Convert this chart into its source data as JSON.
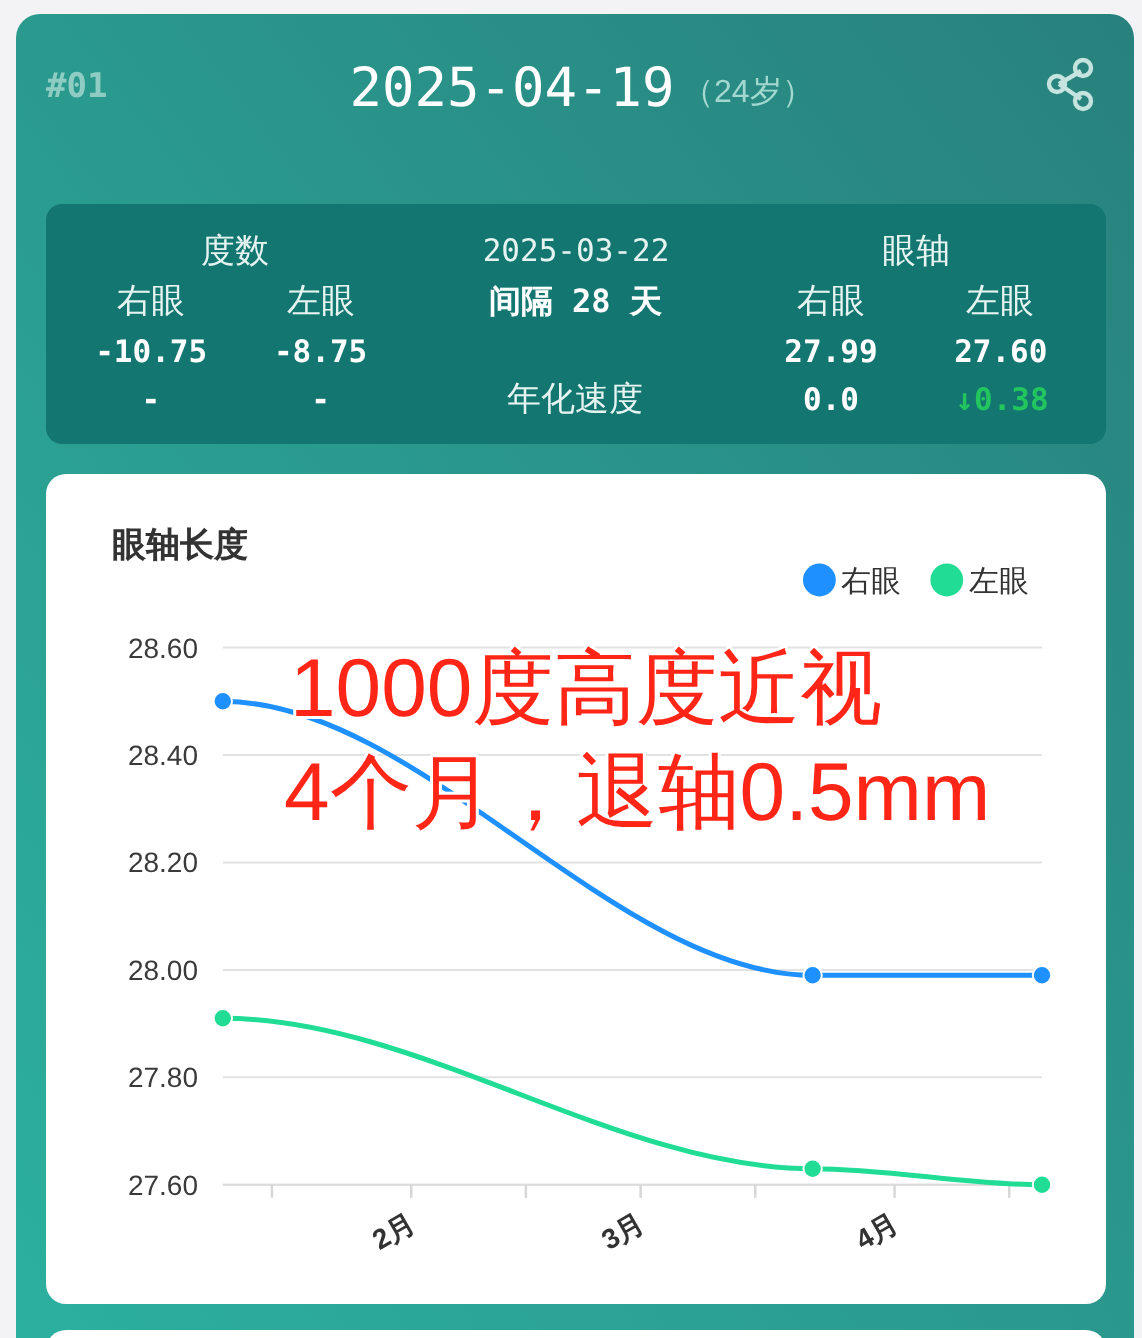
{
  "chart_data": [
    {
      "type": "other",
      "title": "2025-04-19",
      "subtitle": "（24岁）",
      "annotations": [
        "#01",
        "度数",
        "右眼",
        "左眼",
        "-10.75",
        "-8.75",
        "-",
        "-",
        "2025-03-22",
        "间隔 28 天",
        "年化速度",
        "眼轴",
        "右眼",
        "左眼",
        "27.99",
        "27.60",
        "0.0",
        "↓0.38"
      ]
    },
    {
      "type": "line",
      "title": "眼轴长度",
      "x": [
        "2025-01-09",
        "2025-03-22",
        "2025-04-19"
      ],
      "series": [
        {
          "name": "右眼",
          "color": "#1e90ff",
          "values": [
            28.5,
            27.99,
            27.99
          ]
        },
        {
          "name": "左眼",
          "color": "#20dc94",
          "values": [
            27.91,
            27.63,
            27.6
          ]
        }
      ],
      "xlim": [
        "2025-01-09",
        "2025-04-19"
      ],
      "xticks": [
        {
          "value": "2025-01-15",
          "label": null
        },
        {
          "value": "2025-02-01",
          "label": "2月"
        },
        {
          "value": "2025-02-15",
          "label": null
        },
        {
          "value": "2025-03-01",
          "label": "3月"
        },
        {
          "value": "2025-03-15",
          "label": null
        },
        {
          "value": "2025-04-01",
          "label": "4月"
        },
        {
          "value": "2025-04-15",
          "label": null
        }
      ],
      "ylim": [
        27.6,
        28.6
      ],
      "yticks": [
        {
          "value": 27.6,
          "label": "27.60"
        },
        {
          "value": 27.8,
          "label": "27.80"
        },
        {
          "value": 28.0,
          "label": "28.00"
        },
        {
          "value": 28.2,
          "label": "28.20"
        },
        {
          "value": 28.4,
          "label": "28.40"
        },
        {
          "value": 28.6,
          "label": "28.60"
        }
      ],
      "grid": "y",
      "legend": "top right",
      "marker": "circle",
      "annotations": [
        "1000度高度近视",
        "4个月，退轴0.5mm"
      ]
    }
  ]
}
